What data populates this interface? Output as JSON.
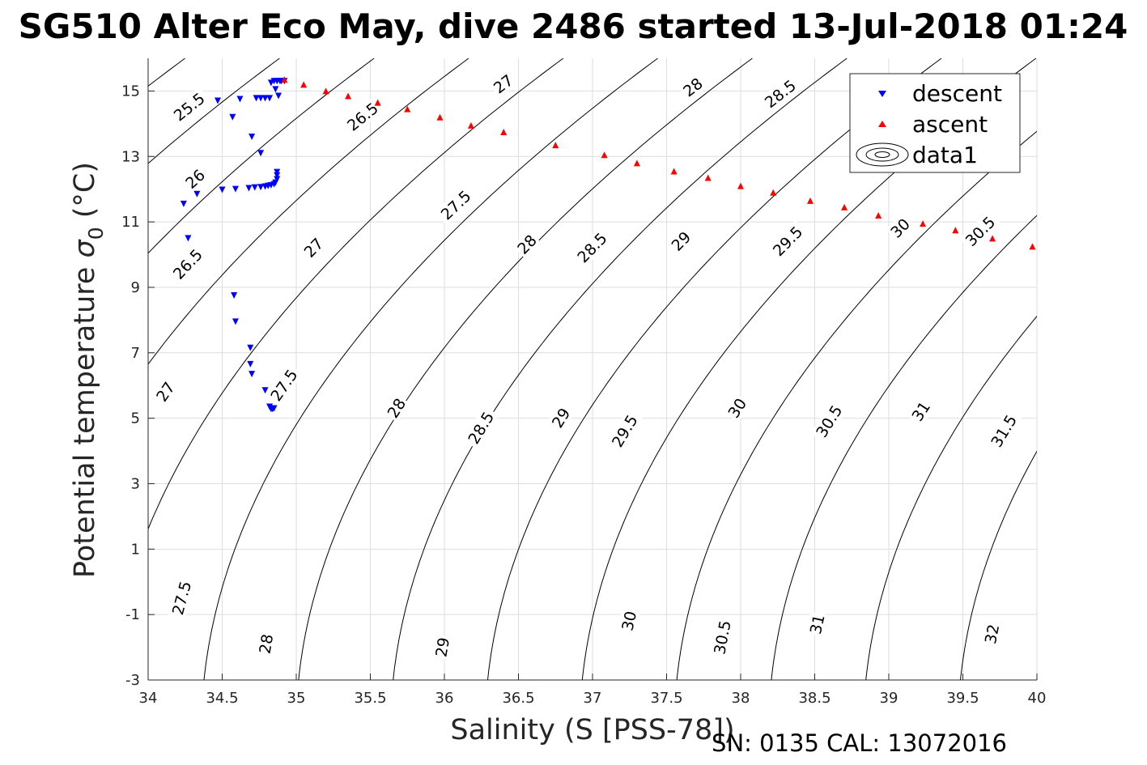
{
  "figure": {
    "title": "SG510 Alter Eco May, dive 2486 started 13-Jul-2018 01:24",
    "footer_note": "SN: 0135  CAL: 13072016"
  },
  "chart_data": {
    "type": "scatter",
    "xlabel": "Salinity (S [PSS-78])",
    "ylabel_main": "Potential temperature",
    "ylabel_sigma": "σ",
    "ylabel_sub": "0",
    "ylabel_unit": "(°C)",
    "xlim": [
      34,
      40
    ],
    "ylim": [
      -3,
      16
    ],
    "xticks": [
      34,
      34.5,
      35,
      35.5,
      36,
      36.5,
      37,
      37.5,
      38,
      38.5,
      39,
      39.5,
      40
    ],
    "xtick_labels": [
      "34",
      "34.5",
      "35",
      "35.5",
      "36",
      "36.5",
      "37",
      "37.5",
      "38",
      "38.5",
      "39",
      "39.5",
      "40"
    ],
    "yticks": [
      -3,
      -1,
      1,
      3,
      5,
      7,
      9,
      11,
      13,
      15
    ],
    "ytick_labels": [
      "-3",
      "-1",
      "1",
      "3",
      "5",
      "7",
      "9",
      "11",
      "13",
      "15"
    ],
    "grid": true,
    "legend": {
      "position": "top-right",
      "entries": [
        "descent",
        "ascent",
        "data1"
      ]
    },
    "series": [
      {
        "name": "descent",
        "marker": "triangle-down",
        "color": "#0000ff",
        "points": [
          [
            34.85,
            15.3
          ],
          [
            34.87,
            15.3
          ],
          [
            34.89,
            15.3
          ],
          [
            34.9,
            15.3
          ],
          [
            34.92,
            15.3
          ],
          [
            34.83,
            15.25
          ],
          [
            34.86,
            15.05
          ],
          [
            34.88,
            14.85
          ],
          [
            34.73,
            14.78
          ],
          [
            34.76,
            14.78
          ],
          [
            34.79,
            14.78
          ],
          [
            34.82,
            14.78
          ],
          [
            34.62,
            14.75
          ],
          [
            34.47,
            14.7
          ],
          [
            34.57,
            14.2
          ],
          [
            34.7,
            13.6
          ],
          [
            34.76,
            13.1
          ],
          [
            34.87,
            12.52
          ],
          [
            34.87,
            12.42
          ],
          [
            34.87,
            12.3
          ],
          [
            34.86,
            12.2
          ],
          [
            34.85,
            12.15
          ],
          [
            34.83,
            12.12
          ],
          [
            34.81,
            12.1
          ],
          [
            34.79,
            12.08
          ],
          [
            34.76,
            12.06
          ],
          [
            34.72,
            12.05
          ],
          [
            34.68,
            12.03
          ],
          [
            34.59,
            12.0
          ],
          [
            34.5,
            11.98
          ],
          [
            34.33,
            11.85
          ],
          [
            34.24,
            11.55
          ],
          [
            34.27,
            10.5
          ],
          [
            34.58,
            8.75
          ],
          [
            34.59,
            7.95
          ],
          [
            34.69,
            7.15
          ],
          [
            34.69,
            6.65
          ],
          [
            34.7,
            6.35
          ],
          [
            34.79,
            5.85
          ],
          [
            34.82,
            5.35
          ],
          [
            34.83,
            5.28
          ],
          [
            34.84,
            5.28
          ],
          [
            34.85,
            5.3
          ]
        ]
      },
      {
        "name": "ascent",
        "marker": "triangle-up",
        "color": "#ff0000",
        "points": [
          [
            34.92,
            15.35
          ],
          [
            35.05,
            15.2
          ],
          [
            35.2,
            15.0
          ],
          [
            35.35,
            14.85
          ],
          [
            35.55,
            14.65
          ],
          [
            35.75,
            14.45
          ],
          [
            35.97,
            14.2
          ],
          [
            36.18,
            13.95
          ],
          [
            36.4,
            13.75
          ],
          [
            36.75,
            13.35
          ],
          [
            37.08,
            13.05
          ],
          [
            37.3,
            12.8
          ],
          [
            37.55,
            12.55
          ],
          [
            37.78,
            12.35
          ],
          [
            38.0,
            12.1
          ],
          [
            38.22,
            11.9
          ],
          [
            38.47,
            11.65
          ],
          [
            38.7,
            11.45
          ],
          [
            38.93,
            11.2
          ],
          [
            39.23,
            10.95
          ],
          [
            39.45,
            10.75
          ],
          [
            39.7,
            10.5
          ],
          [
            39.97,
            10.25
          ]
        ]
      }
    ],
    "contours": {
      "name": "data1",
      "quantity": "sigma_0 potential density anomaly (kg/m3)",
      "levels": [
        25.5,
        26,
        26.5,
        27,
        27.5,
        28,
        28.5,
        29,
        29.5,
        30,
        30.5,
        31,
        31.5,
        32
      ],
      "labels": [
        {
          "text": "25.5",
          "s": 34.28,
          "t": 14.5
        },
        {
          "text": "26",
          "s": 34.32,
          "t": 12.3
        },
        {
          "text": "26.5",
          "s": 34.27,
          "t": 9.7
        },
        {
          "text": "27",
          "s": 34.12,
          "t": 5.8
        },
        {
          "text": "27.5",
          "s": 34.23,
          "t": -0.5
        },
        {
          "text": "26.5",
          "s": 35.45,
          "t": 14.2
        },
        {
          "text": "27",
          "s": 35.12,
          "t": 10.2
        },
        {
          "text": "27.5",
          "s": 34.92,
          "t": 6.0
        },
        {
          "text": "28",
          "s": 34.8,
          "t": -1.9
        },
        {
          "text": "27",
          "s": 36.4,
          "t": 15.2
        },
        {
          "text": "27.5",
          "s": 36.08,
          "t": 11.5
        },
        {
          "text": "28",
          "s": 35.68,
          "t": 5.3
        },
        {
          "text": "29",
          "s": 35.99,
          "t": -2.0
        },
        {
          "text": "28",
          "s": 37.68,
          "t": 15.1
        },
        {
          "text": "28",
          "s": 36.56,
          "t": 10.3
        },
        {
          "text": "28.5",
          "s": 36.25,
          "t": 4.7
        },
        {
          "text": "28.5",
          "s": 37.0,
          "t": 10.2
        },
        {
          "text": "29",
          "s": 36.79,
          "t": 5.0
        },
        {
          "text": "28.5",
          "s": 38.27,
          "t": 14.9
        },
        {
          "text": "29",
          "s": 37.6,
          "t": 10.4
        },
        {
          "text": "29.5",
          "s": 37.22,
          "t": 4.6
        },
        {
          "text": "30",
          "s": 37.25,
          "t": -1.2
        },
        {
          "text": "29.5",
          "s": 38.32,
          "t": 10.4
        },
        {
          "text": "30",
          "s": 37.98,
          "t": 5.3
        },
        {
          "text": "30.5",
          "s": 37.88,
          "t": -1.7
        },
        {
          "text": "30",
          "s": 39.08,
          "t": 10.8
        },
        {
          "text": "30.5",
          "s": 38.6,
          "t": 4.9
        },
        {
          "text": "31",
          "s": 38.52,
          "t": -1.3
        },
        {
          "text": "30.5",
          "s": 39.62,
          "t": 10.7
        },
        {
          "text": "31",
          "s": 39.22,
          "t": 5.2
        },
        {
          "text": "31.5",
          "s": 39.78,
          "t": 4.6
        },
        {
          "text": "32",
          "s": 39.7,
          "t": -1.6
        }
      ]
    }
  }
}
